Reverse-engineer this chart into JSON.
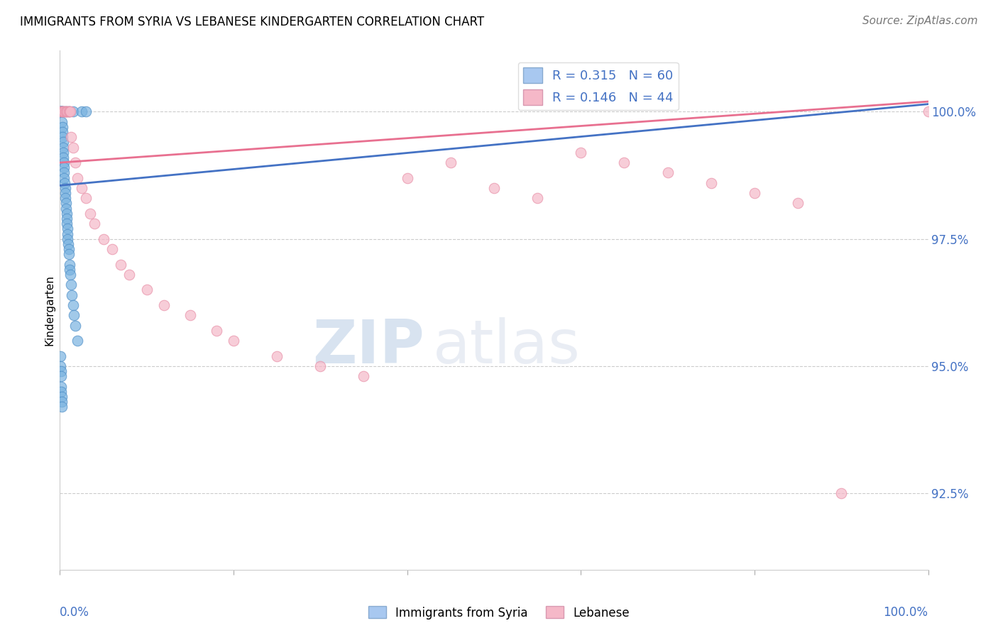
{
  "title": "IMMIGRANTS FROM SYRIA VS LEBANESE KINDERGARTEN CORRELATION CHART",
  "source": "Source: ZipAtlas.com",
  "ylabel": "Kindergarten",
  "ytick_labels": [
    "92.5%",
    "95.0%",
    "97.5%",
    "100.0%"
  ],
  "ytick_values": [
    92.5,
    95.0,
    97.5,
    100.0
  ],
  "xlim": [
    0.0,
    100.0
  ],
  "ylim": [
    91.0,
    101.2
  ],
  "blue_series_x": [
    0.05,
    0.1,
    0.1,
    0.15,
    0.15,
    0.2,
    0.2,
    0.2,
    0.25,
    0.25,
    0.3,
    0.3,
    0.3,
    0.35,
    0.35,
    0.4,
    0.4,
    0.45,
    0.45,
    0.5,
    0.5,
    0.55,
    0.6,
    0.6,
    0.65,
    0.7,
    0.7,
    0.75,
    0.8,
    0.8,
    0.85,
    0.9,
    0.9,
    0.95,
    1.0,
    1.0,
    1.1,
    1.1,
    1.2,
    1.3,
    1.4,
    1.5,
    1.6,
    1.8,
    2.0,
    0.05,
    0.05,
    0.1,
    0.1,
    0.15,
    0.15,
    0.2,
    0.2,
    0.25,
    0.5,
    0.7,
    1.0,
    1.5,
    2.5,
    3.0
  ],
  "blue_series_y": [
    100.0,
    100.0,
    100.0,
    100.0,
    100.0,
    100.0,
    100.0,
    100.0,
    100.0,
    99.8,
    99.7,
    99.6,
    99.5,
    99.4,
    99.3,
    99.2,
    99.1,
    99.0,
    98.9,
    98.8,
    98.7,
    98.6,
    98.5,
    98.4,
    98.3,
    98.2,
    98.1,
    98.0,
    97.9,
    97.8,
    97.7,
    97.6,
    97.5,
    97.4,
    97.3,
    97.2,
    97.0,
    96.9,
    96.8,
    96.6,
    96.4,
    96.2,
    96.0,
    95.8,
    95.5,
    95.2,
    95.0,
    94.9,
    94.8,
    94.6,
    94.5,
    94.4,
    94.3,
    94.2,
    100.0,
    100.0,
    100.0,
    100.0,
    100.0,
    100.0
  ],
  "pink_series_x": [
    0.1,
    0.2,
    0.3,
    0.4,
    0.5,
    0.6,
    0.7,
    0.8,
    0.9,
    1.0,
    1.1,
    1.2,
    1.3,
    1.5,
    1.8,
    2.0,
    2.5,
    3.0,
    3.5,
    4.0,
    5.0,
    6.0,
    7.0,
    8.0,
    10.0,
    12.0,
    15.0,
    18.0,
    20.0,
    25.0,
    30.0,
    35.0,
    40.0,
    45.0,
    50.0,
    55.0,
    60.0,
    65.0,
    70.0,
    75.0,
    80.0,
    85.0,
    90.0,
    100.0
  ],
  "pink_series_y": [
    100.0,
    100.0,
    100.0,
    100.0,
    100.0,
    100.0,
    100.0,
    100.0,
    100.0,
    100.0,
    100.0,
    100.0,
    99.5,
    99.3,
    99.0,
    98.7,
    98.5,
    98.3,
    98.0,
    97.8,
    97.5,
    97.3,
    97.0,
    96.8,
    96.5,
    96.2,
    96.0,
    95.7,
    95.5,
    95.2,
    95.0,
    94.8,
    98.7,
    99.0,
    98.5,
    98.3,
    99.2,
    99.0,
    98.8,
    98.6,
    98.4,
    98.2,
    92.5,
    100.0
  ],
  "blue_trend_x": [
    0.0,
    100.0
  ],
  "blue_trend_y": [
    98.55,
    100.15
  ],
  "pink_trend_x": [
    0.0,
    100.0
  ],
  "pink_trend_y": [
    99.0,
    100.2
  ],
  "blue_color": "#7ab3e0",
  "blue_edge": "#5090c8",
  "pink_color": "#f5b8c8",
  "pink_edge": "#e890a8",
  "blue_trend_color": "#4472c4",
  "pink_trend_color": "#e87090",
  "watermark_zip": "ZIP",
  "watermark_atlas": "atlas",
  "background_color": "#ffffff",
  "grid_color": "#cccccc",
  "marker_size": 110
}
